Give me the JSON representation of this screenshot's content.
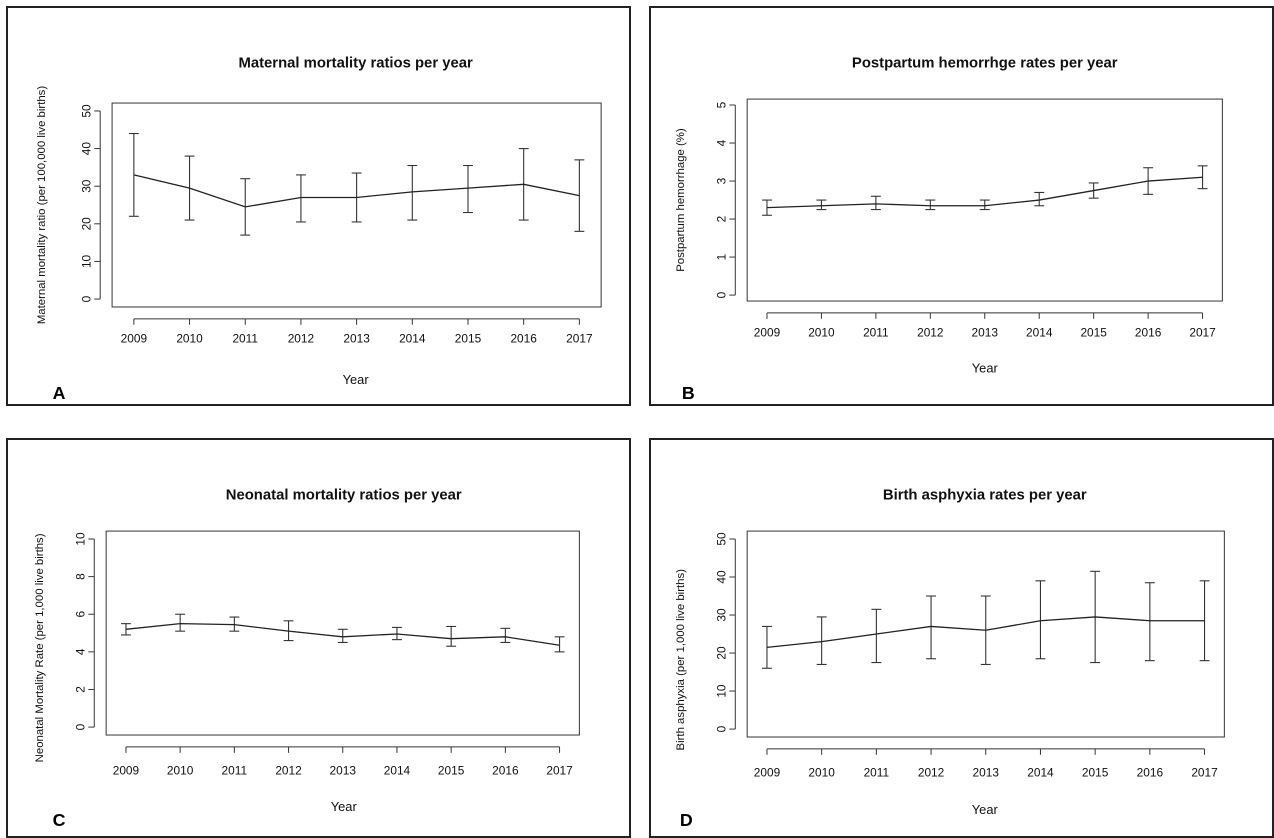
{
  "chart_data": [
    {
      "panel": "A",
      "type": "line",
      "title": "Maternal mortality ratios per year",
      "xlabel": "Year",
      "ylabel": "Maternal mortality ratio (per 100,000 live births)",
      "x": [
        "2009",
        "2010",
        "2011",
        "2012",
        "2013",
        "2014",
        "2015",
        "2016",
        "2017"
      ],
      "values": [
        33,
        29.5,
        24.5,
        27,
        27,
        28.5,
        29.5,
        30.5,
        27.5
      ],
      "lower": [
        22,
        21,
        17,
        20.5,
        20.5,
        21,
        23,
        21,
        18
      ],
      "upper": [
        44,
        38,
        32,
        33,
        33.5,
        35.5,
        35.5,
        40,
        37
      ],
      "ylim": [
        0,
        50
      ],
      "yticks": [
        0,
        10,
        20,
        30,
        40,
        50
      ],
      "grid": false
    },
    {
      "panel": "B",
      "type": "line",
      "title": "Postpartum hemorrhge rates per year",
      "xlabel": "Year",
      "ylabel": "Postpartum hemorrhage (%)",
      "x": [
        "2009",
        "2010",
        "2011",
        "2012",
        "2013",
        "2014",
        "2015",
        "2016",
        "2017"
      ],
      "values": [
        2.3,
        2.35,
        2.4,
        2.35,
        2.35,
        2.5,
        2.75,
        3.0,
        3.1
      ],
      "lower": [
        2.1,
        2.25,
        2.25,
        2.25,
        2.25,
        2.35,
        2.55,
        2.65,
        2.8
      ],
      "upper": [
        2.5,
        2.5,
        2.6,
        2.5,
        2.5,
        2.7,
        2.95,
        3.35,
        3.4
      ],
      "ylim": [
        0,
        5
      ],
      "yticks": [
        0,
        1,
        2,
        3,
        4,
        5
      ],
      "grid": false
    },
    {
      "panel": "C",
      "type": "line",
      "title": "Neonatal mortality ratios per year",
      "xlabel": "Year",
      "ylabel": "Neonatal Mortality Rate (per 1,000 live births)",
      "x": [
        "2009",
        "2010",
        "2011",
        "2012",
        "2013",
        "2014",
        "2015",
        "2016",
        "2017"
      ],
      "values": [
        5.2,
        5.5,
        5.45,
        5.1,
        4.8,
        4.95,
        4.7,
        4.8,
        4.35
      ],
      "lower": [
        4.9,
        5.1,
        5.1,
        4.6,
        4.5,
        4.65,
        4.3,
        4.5,
        4.0
      ],
      "upper": [
        5.5,
        6.0,
        5.85,
        5.65,
        5.2,
        5.3,
        5.35,
        5.25,
        4.8
      ],
      "ylim": [
        0,
        10
      ],
      "yticks": [
        0,
        2,
        4,
        6,
        8,
        10
      ],
      "grid": false
    },
    {
      "panel": "D",
      "type": "line",
      "title": "Birth asphyxia rates per year",
      "xlabel": "Year",
      "ylabel": "Birth asphyxia (per 1,000 live births)",
      "x": [
        "2009",
        "2010",
        "2011",
        "2012",
        "2013",
        "2014",
        "2015",
        "2016",
        "2017"
      ],
      "values": [
        21.5,
        23,
        25,
        27,
        26,
        28.5,
        29.5,
        28.5,
        28.5
      ],
      "lower": [
        16,
        17,
        17.5,
        18.5,
        17,
        18.5,
        17.5,
        18,
        18
      ],
      "upper": [
        27,
        29.5,
        31.5,
        35,
        35,
        39,
        41.5,
        38.5,
        39
      ],
      "ylim": [
        0,
        50
      ],
      "yticks": [
        0,
        10,
        20,
        30,
        40,
        50
      ],
      "grid": false
    }
  ]
}
